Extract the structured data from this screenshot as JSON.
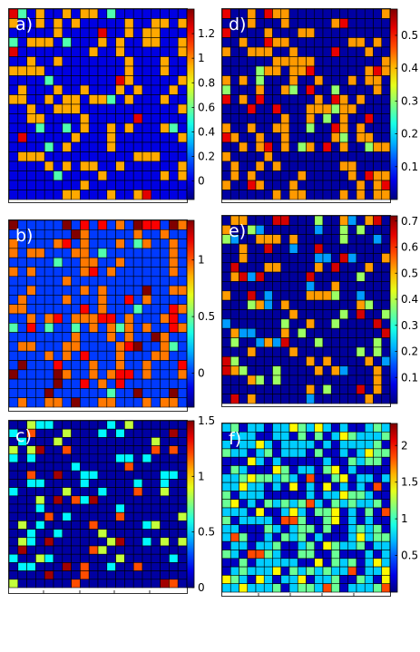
{
  "colormap": "jet",
  "colors": {
    "cell_border": "#000000",
    "frame": "#000000",
    "label": "#ffffff"
  },
  "chart_data": [
    {
      "type": "heatmap",
      "label": "a)",
      "rows": 20,
      "cols": 20,
      "clim": [
        -0.15,
        1.4
      ],
      "cbar_ticks": [
        0,
        0.2,
        0.4,
        0.6,
        0.8,
        1,
        1.2
      ],
      "cbar_tick_labels": [
        "0",
        "0.2",
        "0.4",
        "0.6",
        "0.8",
        "1",
        "1.2"
      ],
      "seed": 11,
      "background": 0.0,
      "levels": [
        {
          "v": 0.95,
          "p": 0.24
        },
        {
          "v": 1.25,
          "p": 0.02
        },
        {
          "v": 0.55,
          "p": 0.02
        }
      ]
    },
    {
      "type": "heatmap",
      "label": "b)",
      "rows": 20,
      "cols": 20,
      "clim": [
        -0.3,
        1.35
      ],
      "cbar_ticks": [
        0,
        0.5,
        1
      ],
      "cbar_tick_labels": [
        "0",
        "0.5",
        "1"
      ],
      "seed": 23,
      "background": 0.0,
      "levels": [
        {
          "v": 0.95,
          "p": 0.16
        },
        {
          "v": 1.15,
          "p": 0.08
        },
        {
          "v": 1.35,
          "p": 0.03
        },
        {
          "v": 0.45,
          "p": 0.03
        }
      ]
    },
    {
      "type": "heatmap",
      "label": "c)",
      "rows": 20,
      "cols": 20,
      "clim": [
        0,
        1.5
      ],
      "cbar_ticks": [
        0,
        0.5,
        1,
        1.5
      ],
      "cbar_tick_labels": [
        "0",
        "0.5",
        "1",
        "1.5"
      ],
      "seed": 37,
      "background": 0.05,
      "levels": [
        {
          "v": 0.55,
          "p": 0.1
        },
        {
          "v": 0.85,
          "p": 0.06
        },
        {
          "v": 1.2,
          "p": 0.04
        },
        {
          "v": 1.45,
          "p": 0.03
        }
      ]
    },
    {
      "type": "heatmap",
      "label": "d)",
      "rows": 20,
      "cols": 20,
      "clim": [
        0,
        0.58
      ],
      "cbar_ticks": [
        0.1,
        0.2,
        0.3,
        0.4,
        0.5
      ],
      "cbar_tick_labels": [
        "0.1",
        "0.2",
        "0.3",
        "0.4",
        "0.5"
      ],
      "seed": 41,
      "background": 0.02,
      "levels": [
        {
          "v": 0.42,
          "p": 0.25
        },
        {
          "v": 0.52,
          "p": 0.04
        },
        {
          "v": 0.3,
          "p": 0.02
        }
      ]
    },
    {
      "type": "heatmap",
      "label": "e)",
      "rows": 20,
      "cols": 20,
      "clim": [
        0,
        0.72
      ],
      "cbar_ticks": [
        0.1,
        0.2,
        0.3,
        0.4,
        0.5,
        0.6,
        0.7
      ],
      "cbar_tick_labels": [
        "0.1",
        "0.2",
        "0.3",
        "0.4",
        "0.5",
        "0.6",
        "0.7"
      ],
      "seed": 53,
      "background": 0.02,
      "levels": [
        {
          "v": 0.38,
          "p": 0.08
        },
        {
          "v": 0.52,
          "p": 0.08
        },
        {
          "v": 0.66,
          "p": 0.05
        },
        {
          "v": 0.2,
          "p": 0.04
        }
      ]
    },
    {
      "type": "heatmap",
      "label": "f)",
      "rows": 20,
      "cols": 20,
      "clim": [
        0,
        2.3
      ],
      "cbar_ticks": [
        0.5,
        1,
        1.5,
        2
      ],
      "cbar_tick_labels": [
        "0.5",
        "1",
        "1.5",
        "2"
      ],
      "seed": 67,
      "background": 0.15,
      "levels": [
        {
          "v": 0.75,
          "p": 0.34
        },
        {
          "v": 1.1,
          "p": 0.2
        },
        {
          "v": 1.45,
          "p": 0.08
        },
        {
          "v": 1.85,
          "p": 0.03
        }
      ]
    }
  ]
}
